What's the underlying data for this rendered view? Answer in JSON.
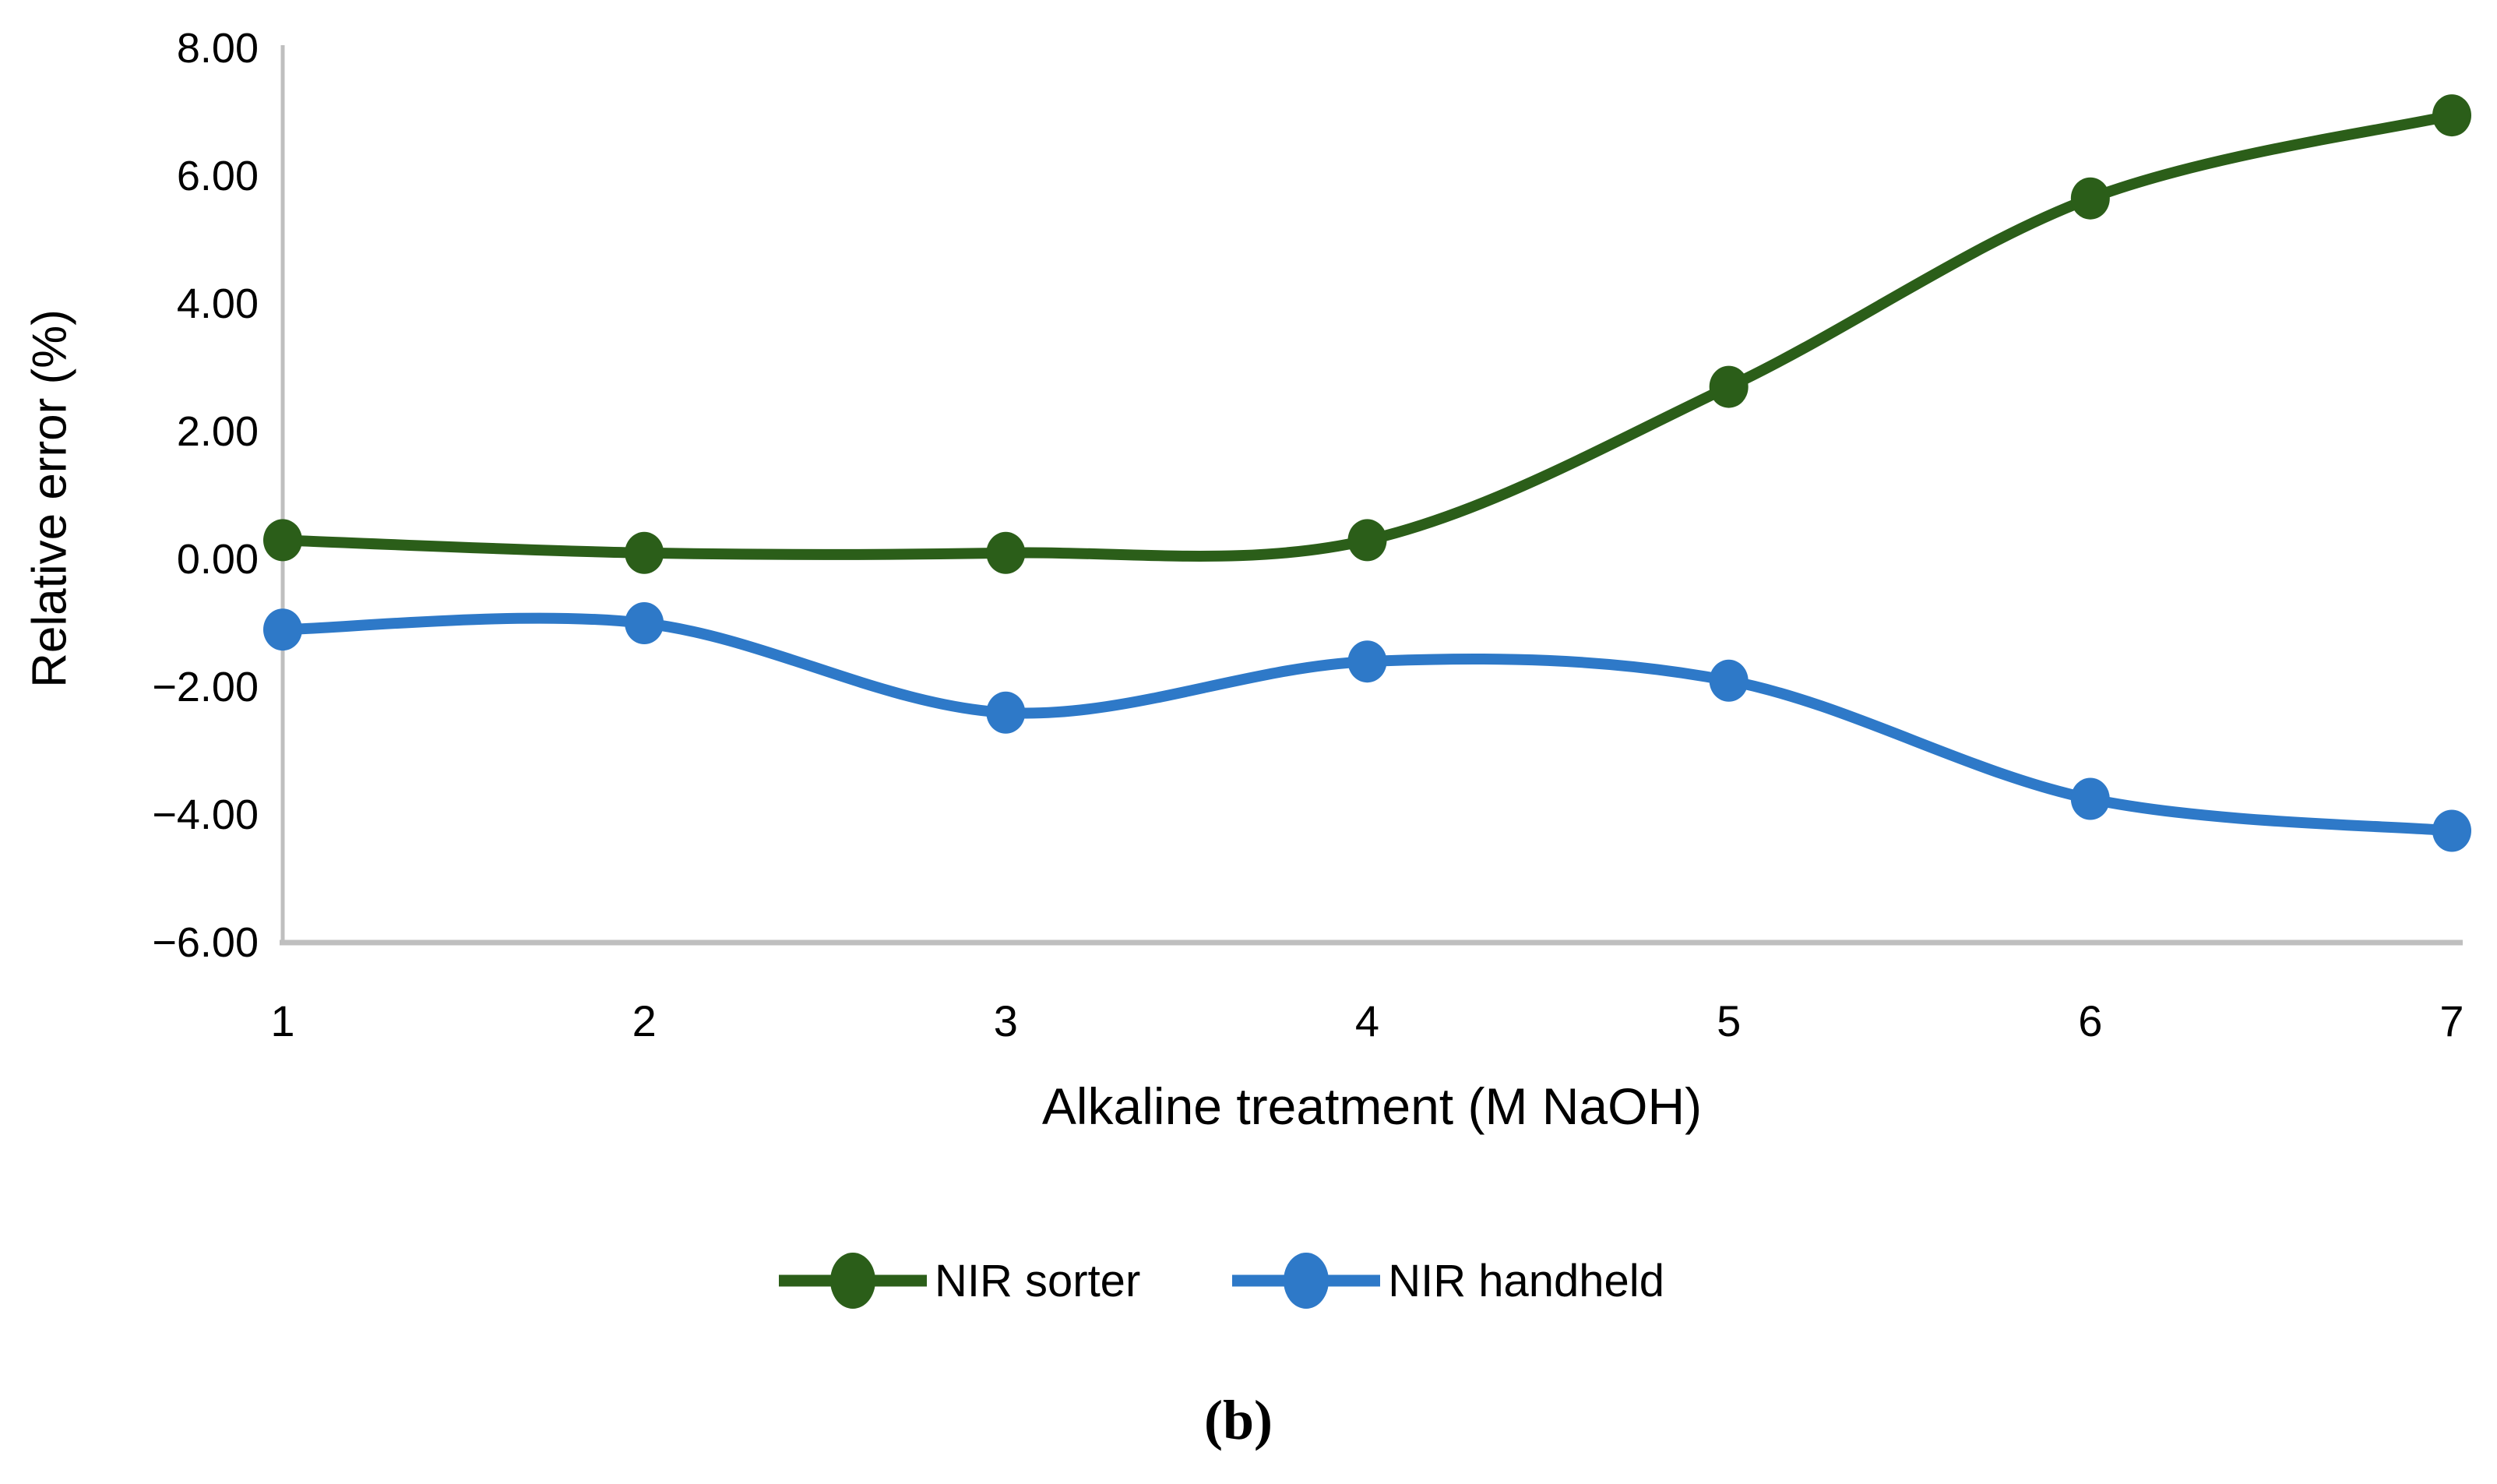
{
  "figure": {
    "caption": "(b)"
  },
  "chart_data": {
    "type": "line",
    "title": "",
    "xlabel": "Alkaline treatment (M NaOH)",
    "ylabel": "Relative error (%)",
    "categories": [
      1,
      2,
      3,
      4,
      5,
      6,
      7
    ],
    "x_tick_labels": [
      "1",
      "2",
      "3",
      "4",
      "5",
      "6",
      "7"
    ],
    "y_ticks": [
      8,
      6,
      4,
      2,
      0,
      -2,
      -4,
      -6
    ],
    "y_tick_labels": [
      "8.00",
      "6.00",
      "4.00",
      "2.00",
      "0.00",
      "−2.00",
      "−4.00",
      "−6.00"
    ],
    "ylim": [
      -6,
      8
    ],
    "grid": false,
    "smooth_lines": true,
    "legend_position": "bottom",
    "series": [
      {
        "name": "NIR sorter",
        "color": "#2B5E19",
        "values": [
          0.3,
          0.1,
          0.1,
          0.3,
          2.7,
          5.65,
          6.95
        ]
      },
      {
        "name": "NIR handheld",
        "color": "#2E79C8",
        "values": [
          -1.1,
          -1.0,
          -2.4,
          -1.6,
          -1.9,
          -3.75,
          -4.25
        ]
      }
    ],
    "axis_color": "#BFBFBF",
    "text_color": "#000000",
    "background_color": "#FFFFFF"
  }
}
